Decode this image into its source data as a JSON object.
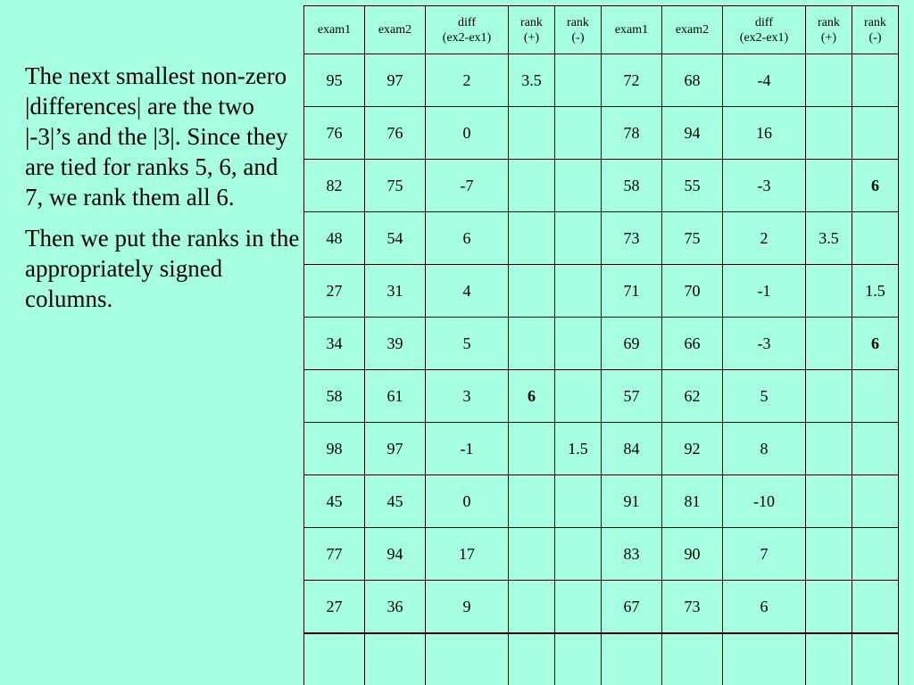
{
  "explanation": {
    "paragraph1": "The next smallest non-zero |differences| are the two |-3|’s and the |3|.  Since they are tied for ranks 5, 6, and 7, we rank them all 6.",
    "paragraph2": "Then we put the ranks in the appropriately signed columns."
  },
  "table": {
    "headers": [
      [
        "exam1"
      ],
      [
        "exam2"
      ],
      [
        "diff",
        "(ex2-ex1)"
      ],
      [
        "rank",
        "(+)"
      ],
      [
        "rank",
        "(-)"
      ],
      [
        "exam1"
      ],
      [
        "exam2"
      ],
      [
        "diff",
        "(ex2-ex1)"
      ],
      [
        "rank",
        "(+)"
      ],
      [
        "rank",
        "(-)"
      ]
    ],
    "rows": [
      [
        "95",
        "97",
        "2",
        "3.5",
        "",
        "72",
        "68",
        "-4",
        "",
        ""
      ],
      [
        "76",
        "76",
        "0",
        "",
        "",
        "78",
        "94",
        "16",
        "",
        ""
      ],
      [
        "82",
        "75",
        "-7",
        "",
        "",
        "58",
        "55",
        "-3",
        "",
        "6"
      ],
      [
        "48",
        "54",
        "6",
        "",
        "",
        "73",
        "75",
        "2",
        "3.5",
        ""
      ],
      [
        "27",
        "31",
        "4",
        "",
        "",
        "71",
        "70",
        "-1",
        "",
        "1.5"
      ],
      [
        "34",
        "39",
        "5",
        "",
        "",
        "69",
        "66",
        "-3",
        "",
        "6"
      ],
      [
        "58",
        "61",
        "3",
        "6",
        "",
        "57",
        "62",
        "5",
        "",
        ""
      ],
      [
        "98",
        "97",
        "-1",
        "",
        "1.5",
        "84",
        "92",
        "8",
        "",
        ""
      ],
      [
        "45",
        "45",
        "0",
        "",
        "",
        "91",
        "81",
        "-10",
        "",
        ""
      ],
      [
        "77",
        "94",
        "17",
        "",
        "",
        "83",
        "90",
        "7",
        "",
        ""
      ],
      [
        "27",
        "36",
        "9",
        "",
        "",
        "67",
        "73",
        "6",
        "",
        ""
      ],
      [
        "",
        "",
        "",
        "",
        "",
        "",
        "",
        "",
        "",
        ""
      ]
    ],
    "bold_cells": [
      [
        2,
        9
      ],
      [
        5,
        9
      ],
      [
        6,
        3
      ]
    ]
  }
}
